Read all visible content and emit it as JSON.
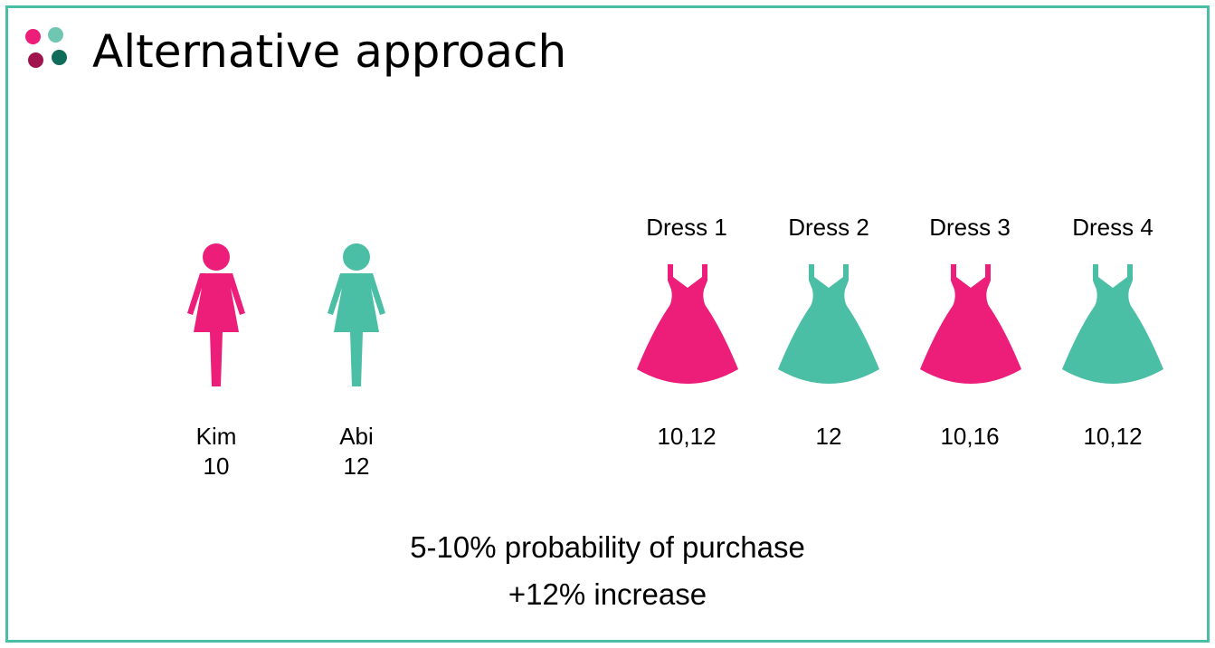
{
  "title": "Alternative approach",
  "colors": {
    "pink": "#ec1e79",
    "teal": "#4bbfa6",
    "dark_pink": "#a0144d",
    "dark_teal": "#0f6b5a",
    "light_teal": "#6fc6b2",
    "frame": "#4bbfa6"
  },
  "customers": [
    {
      "name": "Kim",
      "size": "10",
      "icon": "woman-icon",
      "color": "pink"
    },
    {
      "name": "Abi",
      "size": "12",
      "icon": "woman-icon",
      "color": "teal"
    }
  ],
  "dresses": [
    {
      "label": "Dress 1",
      "sizes": "10,12",
      "icon": "dress-icon",
      "color": "pink"
    },
    {
      "label": "Dress 2",
      "sizes": "12",
      "icon": "dress-icon",
      "color": "teal"
    },
    {
      "label": "Dress 3",
      "sizes": "10,16",
      "icon": "dress-icon",
      "color": "pink"
    },
    {
      "label": "Dress 4",
      "sizes": "10,12",
      "icon": "dress-icon",
      "color": "teal"
    }
  ],
  "footer": {
    "line1": "5-10% probability of purchase",
    "line2": "+12% increase"
  }
}
